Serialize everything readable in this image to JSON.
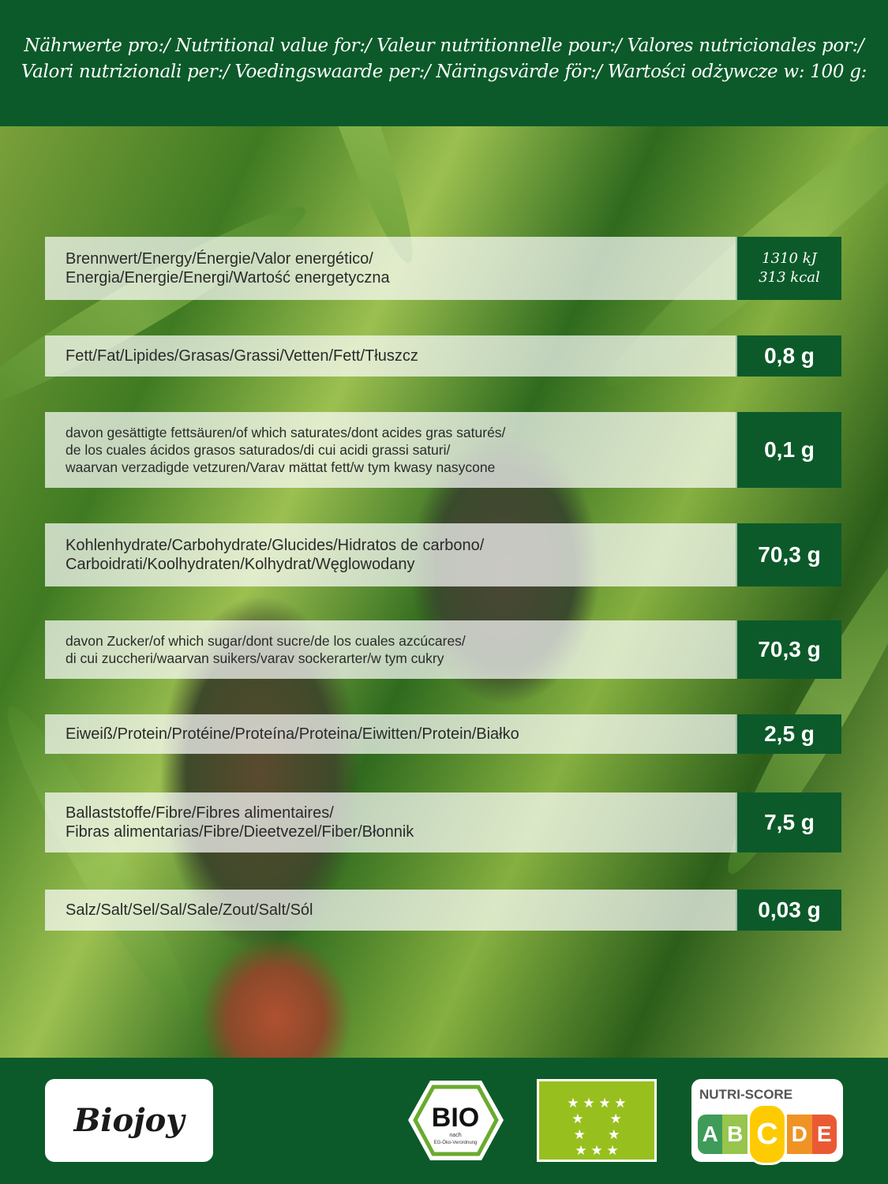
{
  "header": {
    "line1": "Nährwerte pro:/ Nutritional value for:/ Valeur nutritionnelle pour:/ Valores nutricionales por:/",
    "line2": "Valori nutrizionali per:/ Voedingswaarde per:/ Näringsvärde för:/ Wartości odżywcze w: 100 g:"
  },
  "rows": [
    {
      "lines": [
        "Brennwert/Energy/Énergie/Valor energético/",
        "Energia/Energie/Energi/Wartość energetyczna"
      ],
      "value": [
        "1310 kJ",
        "313 kcal"
      ]
    },
    {
      "lines": [
        "Fett/Fat/Lipides/Grasas/Grassi/Vetten/Fett/Tłuszcz"
      ],
      "value": "0,8 g"
    },
    {
      "lines": [
        "davon gesättigte fettsäuren/of which saturates/dont acides gras saturés/",
        "de los cuales ácidos grasos saturados/di cui acidi grassi saturi/",
        "waarvan verzadigde vetzuren/Varav mättat fett/w tym kwasy nasycone"
      ],
      "value": "0,1 g"
    },
    {
      "lines": [
        "Kohlenhydrate/Carbohydrate/Glucides/Hidratos de carbono/",
        "Carboidrati/Koolhydraten/Kolhydrat/Węglowodany"
      ],
      "value": "70,3 g"
    },
    {
      "lines": [
        "davon Zucker/of which sugar/dont sucre/de los cuales azcúcares/",
        "di cui zuccheri/waarvan suikers/varav sockerarter/w tym cukry"
      ],
      "value": "70,3 g"
    },
    {
      "lines": [
        "Eiweiß/Protein/Protéine/Proteína/Proteina/Eiwitten/Protein/Białko"
      ],
      "value": "2,5 g"
    },
    {
      "lines": [
        "Ballaststoffe/Fibre/Fibres alimentaires/",
        "Fibras alimentarias/Fibre/Dieetvezel/Fiber/Błonnik"
      ],
      "value": "7,5 g"
    },
    {
      "lines": [
        "Salz/Salt/Sel/Sal/Sale/Zout/Salt/Sól"
      ],
      "value": "0,03 g"
    }
  ],
  "footer": {
    "brand": "Biojoy",
    "bio_seal": {
      "text": "BIO",
      "sub1": "nach",
      "sub2": "EG-Öko-Verordnung"
    },
    "eu_leaf": "eu-organic-leaf-icon",
    "nutri_score": {
      "title": "NUTRI-SCORE",
      "letters": [
        "A",
        "B",
        "C",
        "D",
        "E"
      ],
      "selected": "C",
      "colors": [
        "#1e8a3c",
        "#85bb2f",
        "#fecb02",
        "#ee8100",
        "#e63e11"
      ]
    }
  },
  "colors": {
    "green": "#0c5a2a"
  }
}
